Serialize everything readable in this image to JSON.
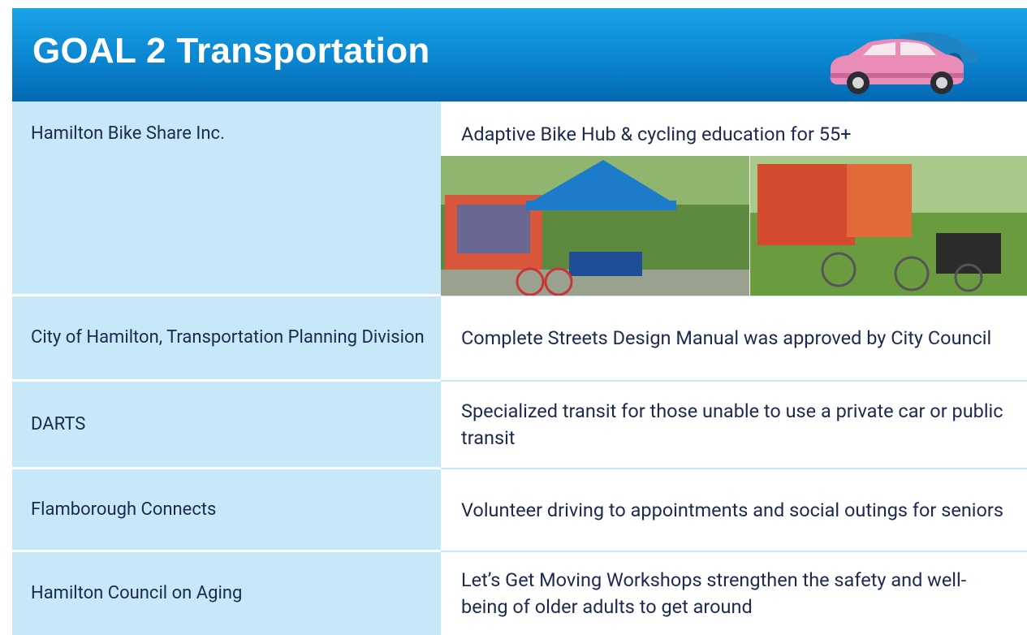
{
  "header": {
    "title": "GOAL 2 Transportation"
  },
  "table": {
    "rows": [
      {
        "organization": "Hamilton Bike Share Inc.",
        "description": "Adaptive Bike Hub & cycling education for 55+"
      },
      {
        "organization": "City of Hamilton, Transportation Planning Division",
        "description": "Complete Streets Design Manual was approved by City Council"
      },
      {
        "organization": "DARTS",
        "description": "Specialized transit for those unable to use a private car or public transit"
      },
      {
        "organization": "Flamborough Connects",
        "description": "Volunteer driving to appointments and social outings for seniors"
      },
      {
        "organization": "Hamilton Council on Aging",
        "description": "Let’s Get Moving Workshops strengthen the safety and well-being of older adults to get around"
      }
    ]
  }
}
